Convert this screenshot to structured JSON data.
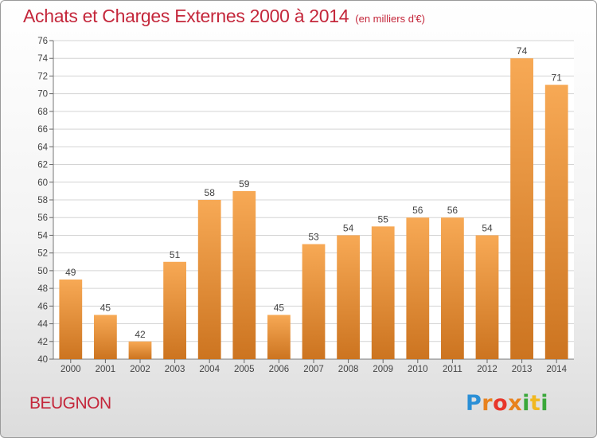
{
  "title": "Achats et Charges Externes 2000 à 2014",
  "unit": "(en milliers d'€)",
  "commune": "BEUGNON",
  "logo": {
    "p": "P",
    "r": "r",
    "o": "o",
    "x": "x",
    "i1": "i",
    "t": "t",
    "i2": "i"
  },
  "colors": {
    "title": "#c4273b",
    "bar_light": "#f7a955",
    "bar_dark": "#cc7420",
    "grid": "#d4d4d4"
  },
  "chart_data": {
    "type": "bar",
    "categories": [
      "2000",
      "2001",
      "2002",
      "2003",
      "2004",
      "2005",
      "2006",
      "2007",
      "2008",
      "2009",
      "2010",
      "2011",
      "2012",
      "2013",
      "2014"
    ],
    "values": [
      49,
      45,
      42,
      51,
      58,
      59,
      45,
      53,
      54,
      55,
      56,
      56,
      54,
      74,
      71
    ],
    "ylim": [
      40,
      76
    ],
    "ytick_step": 2,
    "grid": true,
    "xlabel": "",
    "ylabel": ""
  }
}
